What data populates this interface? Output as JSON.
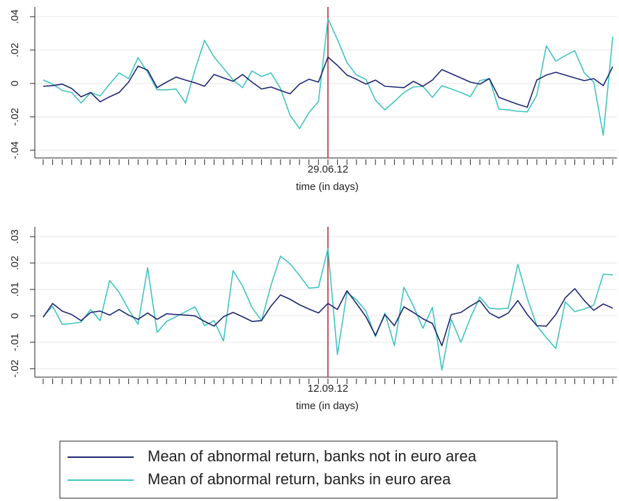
{
  "chart_data": [
    {
      "type": "line",
      "xlabel": "time (in days)",
      "categories": [
        null,
        null,
        null,
        null,
        null,
        null,
        null,
        null,
        null,
        null,
        null,
        null,
        null,
        null,
        null,
        null,
        null,
        null,
        null,
        null,
        null,
        null,
        null,
        null,
        null,
        null,
        null,
        null,
        null,
        null,
        "29.06.12",
        null,
        null,
        null,
        null,
        null,
        null,
        null,
        null,
        null,
        null,
        null,
        null,
        null,
        null,
        null,
        null,
        null,
        null,
        null,
        null,
        null,
        null,
        null,
        null,
        null,
        null,
        null,
        null,
        null,
        null
      ],
      "ylim": [
        -0.0446,
        0.0458
      ],
      "yticks": [
        {
          "value": -0.04,
          "label": "-.04"
        },
        {
          "value": -0.02,
          "label": "-.02"
        },
        0,
        {
          "value": 0.02,
          "label": ".02"
        },
        {
          "value": 0.04,
          "label": ".04"
        }
      ],
      "grid": true,
      "vline_color": "#b0202a",
      "legend": "bottom",
      "series": [
        {
          "name": "Mean of abnormal return, banks not in euro area",
          "color": "#1c2570",
          "values": [
            -0.0017,
            -0.0013,
            -0.0004,
            -0.003,
            -0.008,
            -0.0054,
            -0.011,
            -0.008,
            -0.0054,
            0.0008,
            0.0104,
            0.008,
            -0.0025,
            0.0008,
            0.0038,
            0.002,
            0.0004,
            -0.0017,
            0.0054,
            0.0033,
            0.0013,
            0.0054,
            0.0008,
            -0.0033,
            -0.0021,
            -0.0042,
            -0.0062,
            -0.0004,
            0.0025,
            0.0008,
            0.0158,
            0.0108,
            0.005,
            0.0025,
            -0.0004,
            0.002,
            -0.0017,
            -0.0021,
            -0.0025,
            0.0013,
            -0.0017,
            0.002,
            0.0083,
            0.0058,
            0.0033,
            0.0008,
            -0.0004,
            0.0029,
            -0.0083,
            -0.0104,
            -0.0125,
            -0.0142,
            0.002,
            0.005,
            0.0067,
            0.005,
            0.0033,
            0.0017,
            0.0029,
            -0.0013,
            0.01
          ]
        },
        {
          "name": "Mean of abnormal return, banks in euro area",
          "color": "#3ec4c0",
          "values": [
            0.0021,
            -0.0004,
            -0.0042,
            -0.0054,
            -0.0117,
            -0.0054,
            -0.0075,
            -0.0004,
            0.0063,
            0.0029,
            0.0154,
            0.0067,
            -0.0038,
            -0.0038,
            -0.0033,
            -0.0117,
            0.0083,
            0.0258,
            0.0158,
            0.0092,
            0.0021,
            -0.0025,
            0.0075,
            0.0042,
            0.0063,
            -0.003,
            -0.019,
            -0.027,
            -0.0175,
            -0.0108,
            0.0388,
            0.0263,
            0.0125,
            0.005,
            0.0025,
            -0.01,
            -0.0158,
            -0.0108,
            -0.0054,
            -0.0021,
            -0.0017,
            -0.0083,
            -0.0013,
            -0.0033,
            -0.0054,
            -0.0079,
            0.0017,
            0.0029,
            -0.0154,
            -0.0158,
            -0.0167,
            -0.017,
            -0.0071,
            0.0225,
            0.0133,
            0.0167,
            0.0196,
            0.0063,
            0.0008,
            -0.031,
            0.028
          ]
        }
      ]
    },
    {
      "type": "line",
      "xlabel": "time (in days)",
      "categories": [
        null,
        null,
        null,
        null,
        null,
        null,
        null,
        null,
        null,
        null,
        null,
        null,
        null,
        null,
        null,
        null,
        null,
        null,
        null,
        null,
        null,
        null,
        null,
        null,
        null,
        null,
        null,
        null,
        null,
        null,
        "12.09.12",
        null,
        null,
        null,
        null,
        null,
        null,
        null,
        null,
        null,
        null,
        null,
        null,
        null,
        null,
        null,
        null,
        null,
        null,
        null,
        null,
        null,
        null,
        null,
        null,
        null,
        null,
        null,
        null,
        null,
        null
      ],
      "ylim": [
        -0.0232,
        0.0337
      ],
      "yticks": [
        {
          "value": -0.02,
          "label": "-.02"
        },
        {
          "value": -0.01,
          "label": "-.01"
        },
        0,
        {
          "value": 0.01,
          "label": ".01"
        },
        {
          "value": 0.02,
          "label": ".02"
        },
        {
          "value": 0.03,
          "label": ".03"
        }
      ],
      "grid": true,
      "vline_color": "#b0202a",
      "series": [
        {
          "name": "Mean of abnormal return, banks not in euro area",
          "color": "#1c2570",
          "values": [
            -0.0005,
            0.0047,
            0.0018,
            0.0005,
            -0.0018,
            0.0013,
            0.0018,
            0.0003,
            0.0024,
            0.0003,
            -0.0013,
            0.0011,
            -0.0013,
            0.0008,
            0.0005,
            0.0003,
            0,
            -0.0021,
            -0.0039,
            -0.0003,
            0.0013,
            -0.0003,
            -0.0021,
            -0.0018,
            0.0037,
            0.0079,
            0.0063,
            0.0042,
            0.0026,
            0.0011,
            0.0047,
            0.0024,
            0.0095,
            0.0047,
            -0.0003,
            -0.0074,
            0.0005,
            -0.0037,
            0.0034,
            0.0013,
            -0.0011,
            -0.0029,
            -0.0113,
            0.0005,
            0.0013,
            0.0037,
            0.0058,
            0.0011,
            -0.0008,
            0.0011,
            0.0058,
            0.0005,
            -0.0037,
            -0.0039,
            0.0005,
            0.0068,
            0.0103,
            0.0058,
            0.0021,
            0.0045,
            0.0029
          ]
        },
        {
          "name": "Mean of abnormal return, banks in euro area",
          "color": "#3ec4c0",
          "values": [
            -0.0003,
            0.0037,
            -0.0032,
            -0.0029,
            -0.0024,
            0.0024,
            -0.0018,
            0.0134,
            0.0089,
            0.0024,
            -0.0032,
            0.0182,
            -0.0063,
            -0.0021,
            -0.0003,
            0.0016,
            0.0034,
            -0.0037,
            -0.0018,
            -0.0095,
            0.0171,
            0.0113,
            0.0032,
            -0.0018,
            0.0116,
            0.0226,
            0.0197,
            0.0153,
            0.0105,
            0.0108,
            0.0255,
            -0.0147,
            0.0089,
            0.0061,
            0.0018,
            -0.0079,
            0.0011,
            -0.0113,
            0.0108,
            0.0037,
            -0.0047,
            0.0032,
            -0.0205,
            -0.0013,
            -0.01,
            -0.0008,
            0.0071,
            0.0029,
            0.0026,
            0.0029,
            0.0195,
            0.0066,
            -0.0037,
            -0.0082,
            -0.0124,
            0.0053,
            0.0016,
            0.0026,
            0.004,
            0.0158,
            0.0155
          ]
        }
      ]
    }
  ]
}
